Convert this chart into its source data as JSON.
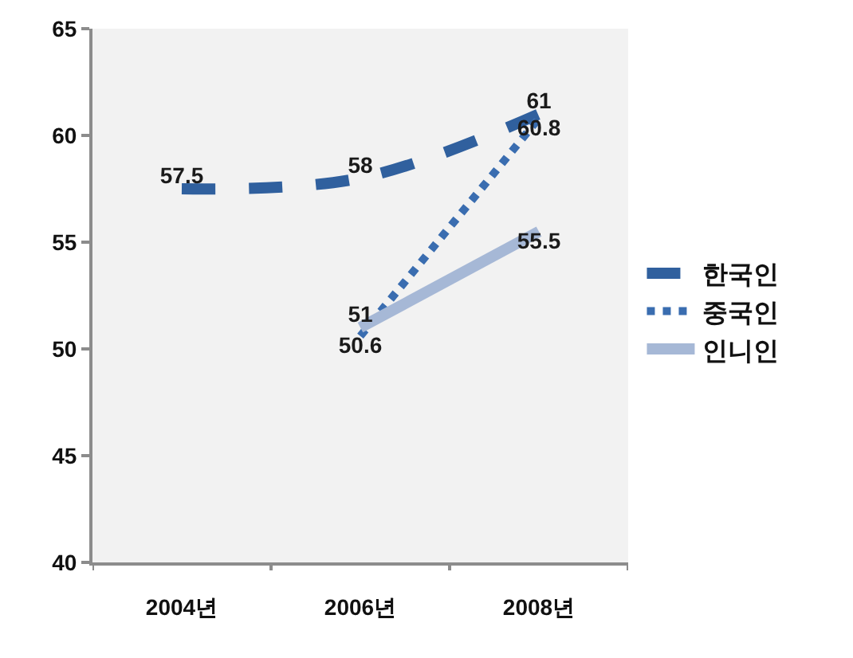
{
  "chart_data": {
    "type": "line",
    "categories": [
      "2004년",
      "2006년",
      "2008년"
    ],
    "series": [
      {
        "name": "한국인",
        "color": "#30609e",
        "line_style": "dashed",
        "values": [
          57.5,
          58,
          61
        ]
      },
      {
        "name": "중국인",
        "color": "#3a6db0",
        "line_style": "dotted",
        "values": [
          null,
          50.6,
          60.8
        ]
      },
      {
        "name": "인니인",
        "color": "#a6b8d6",
        "line_style": "solid",
        "values": [
          null,
          51,
          55.5
        ]
      }
    ],
    "ylim": [
      40,
      65
    ],
    "yticks": [
      40,
      45,
      50,
      55,
      60,
      65
    ],
    "data_labels": true,
    "legend": "right"
  }
}
